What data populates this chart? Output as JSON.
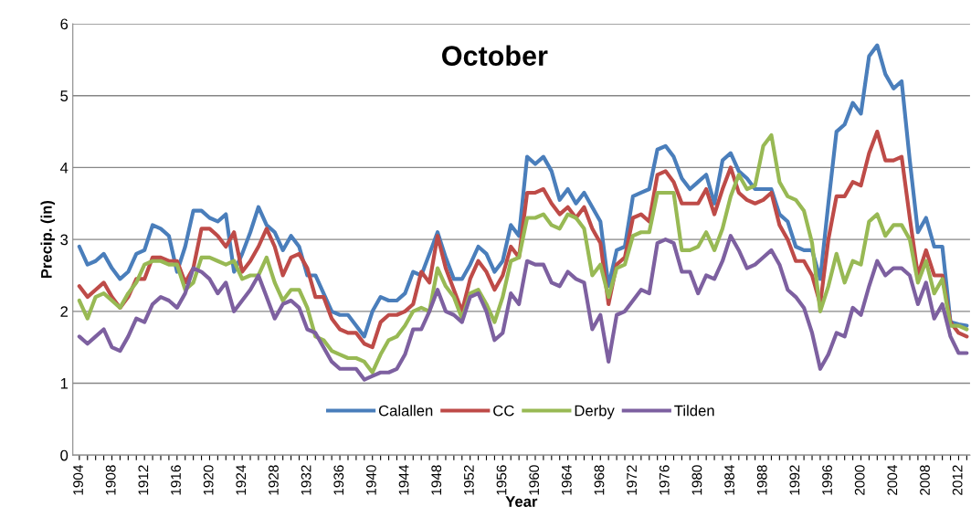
{
  "chart_data": {
    "type": "line",
    "title": "October",
    "xlabel": "Year",
    "ylabel": "Precip. (in)",
    "categories": [
      "1904",
      null,
      null,
      null,
      "1908",
      null,
      null,
      null,
      "1912",
      null,
      null,
      null,
      "1916",
      null,
      null,
      null,
      "1920",
      null,
      null,
      null,
      "1924",
      null,
      null,
      null,
      "1928",
      null,
      null,
      null,
      "1932",
      null,
      null,
      null,
      "1936",
      null,
      null,
      null,
      "1940",
      null,
      null,
      null,
      "1944",
      null,
      null,
      null,
      "1948",
      null,
      null,
      null,
      "1952",
      null,
      null,
      null,
      "1956",
      null,
      null,
      null,
      "1960",
      null,
      null,
      null,
      "1964",
      null,
      null,
      null,
      "1968",
      null,
      null,
      null,
      "1972",
      null,
      null,
      null,
      "1976",
      null,
      null,
      null,
      "1980",
      null,
      null,
      null,
      "1984",
      null,
      null,
      null,
      "1988",
      null,
      null,
      null,
      "1992",
      null,
      null,
      null,
      "1996",
      null,
      null,
      null,
      "2000",
      null,
      null,
      null,
      "2004",
      null,
      null,
      null,
      "2008",
      null,
      null,
      null,
      "2012",
      null
    ],
    "series": [
      {
        "name": "Calallen",
        "color": "#4a7ebb",
        "values": [
          2.9,
          2.65,
          2.7,
          2.8,
          2.6,
          2.45,
          2.55,
          2.8,
          2.85,
          3.2,
          3.15,
          3.05,
          2.55,
          2.9,
          3.4,
          3.4,
          3.3,
          3.25,
          3.35,
          2.55,
          2.8,
          3.1,
          3.45,
          3.2,
          3.1,
          2.85,
          3.05,
          2.9,
          2.5,
          2.5,
          2.25,
          2.0,
          1.95,
          1.95,
          1.8,
          1.65,
          2.0,
          2.2,
          2.15,
          2.15,
          2.25,
          2.55,
          2.5,
          2.8,
          3.1,
          2.75,
          2.45,
          2.45,
          2.65,
          2.9,
          2.8,
          2.55,
          2.7,
          3.2,
          3.05,
          4.15,
          4.05,
          4.15,
          3.95,
          3.55,
          3.7,
          3.5,
          3.65,
          3.45,
          3.25,
          2.35,
          2.85,
          2.9,
          3.6,
          3.65,
          3.7,
          4.25,
          4.3,
          4.15,
          3.85,
          3.7,
          3.8,
          3.9,
          3.5,
          4.1,
          4.2,
          3.95,
          3.85,
          3.7,
          3.7,
          3.7,
          3.35,
          3.25,
          2.9,
          2.85,
          2.85,
          2.45,
          3.5,
          4.5,
          4.6,
          4.9,
          4.75,
          5.55,
          5.7,
          5.3,
          5.1,
          5.2,
          4.1,
          3.1,
          3.3,
          2.9,
          2.9,
          1.85,
          1.82,
          1.8
        ]
      },
      {
        "name": "CC",
        "color": "#be4b48",
        "values": [
          2.35,
          2.2,
          2.3,
          2.4,
          2.2,
          2.05,
          2.2,
          2.45,
          2.45,
          2.75,
          2.75,
          2.7,
          2.7,
          2.4,
          2.6,
          3.15,
          3.15,
          3.05,
          2.9,
          3.1,
          2.55,
          2.7,
          2.9,
          3.15,
          2.9,
          2.5,
          2.75,
          2.8,
          2.6,
          2.2,
          2.2,
          1.9,
          1.75,
          1.7,
          1.7,
          1.55,
          1.5,
          1.85,
          1.95,
          1.95,
          2.0,
          2.1,
          2.55,
          2.4,
          3.05,
          2.6,
          2.3,
          2.0,
          2.45,
          2.7,
          2.55,
          2.3,
          2.5,
          2.9,
          2.75,
          3.65,
          3.65,
          3.7,
          3.5,
          3.35,
          3.45,
          3.3,
          3.45,
          3.15,
          2.95,
          2.1,
          2.65,
          2.75,
          3.3,
          3.35,
          3.25,
          3.9,
          3.95,
          3.8,
          3.5,
          3.5,
          3.5,
          3.7,
          3.35,
          3.7,
          4.0,
          3.65,
          3.55,
          3.5,
          3.55,
          3.65,
          3.2,
          3.0,
          2.7,
          2.7,
          2.5,
          2.1,
          3.0,
          3.6,
          3.6,
          3.8,
          3.75,
          4.2,
          4.5,
          4.1,
          4.1,
          4.15,
          3.3,
          2.5,
          2.85,
          2.5,
          2.5,
          1.85,
          1.7,
          1.65
        ]
      },
      {
        "name": "Derby",
        "color": "#98b954",
        "values": [
          2.15,
          1.9,
          2.2,
          2.25,
          2.15,
          2.05,
          2.25,
          2.4,
          2.65,
          2.7,
          2.7,
          2.65,
          2.65,
          2.3,
          2.4,
          2.75,
          2.75,
          2.7,
          2.65,
          2.7,
          2.45,
          2.5,
          2.5,
          2.75,
          2.4,
          2.15,
          2.3,
          2.3,
          2.05,
          1.65,
          1.6,
          1.45,
          1.4,
          1.35,
          1.35,
          1.3,
          1.15,
          1.4,
          1.6,
          1.65,
          1.8,
          2.0,
          2.05,
          2.0,
          2.6,
          2.35,
          2.2,
          1.9,
          2.25,
          2.3,
          2.1,
          1.85,
          2.2,
          2.7,
          2.75,
          3.3,
          3.3,
          3.35,
          3.2,
          3.15,
          3.35,
          3.3,
          3.15,
          2.5,
          2.65,
          2.2,
          2.6,
          2.65,
          3.05,
          3.1,
          3.1,
          3.65,
          3.65,
          3.65,
          2.85,
          2.85,
          2.9,
          3.1,
          2.85,
          3.15,
          3.6,
          3.9,
          3.7,
          3.75,
          4.3,
          4.45,
          3.8,
          3.6,
          3.55,
          3.4,
          2.95,
          2.0,
          2.35,
          2.8,
          2.4,
          2.7,
          2.65,
          3.25,
          3.35,
          3.05,
          3.2,
          3.2,
          3.0,
          2.4,
          2.7,
          2.25,
          2.45,
          1.8,
          1.8,
          1.75
        ]
      },
      {
        "name": "Tilden",
        "color": "#7d60a0",
        "values": [
          1.65,
          1.55,
          1.65,
          1.75,
          1.5,
          1.45,
          1.65,
          1.9,
          1.85,
          2.1,
          2.2,
          2.15,
          2.05,
          2.25,
          2.6,
          2.55,
          2.45,
          2.25,
          2.4,
          2.0,
          2.15,
          2.3,
          2.5,
          2.2,
          1.9,
          2.1,
          2.15,
          2.05,
          1.75,
          1.7,
          1.5,
          1.3,
          1.2,
          1.2,
          1.2,
          1.05,
          1.1,
          1.15,
          1.15,
          1.2,
          1.4,
          1.75,
          1.75,
          2.0,
          2.3,
          2.0,
          1.95,
          1.85,
          2.2,
          2.25,
          2.0,
          1.6,
          1.7,
          2.25,
          2.1,
          2.7,
          2.65,
          2.65,
          2.4,
          2.35,
          2.55,
          2.45,
          2.4,
          1.75,
          1.95,
          1.3,
          1.95,
          2.0,
          2.15,
          2.3,
          2.25,
          2.95,
          3.0,
          2.95,
          2.55,
          2.55,
          2.25,
          2.5,
          2.45,
          2.7,
          3.05,
          2.85,
          2.6,
          2.65,
          2.75,
          2.85,
          2.65,
          2.3,
          2.2,
          2.05,
          1.7,
          1.2,
          1.4,
          1.7,
          1.65,
          2.05,
          1.95,
          2.35,
          2.7,
          2.5,
          2.6,
          2.6,
          2.5,
          2.1,
          2.4,
          1.9,
          2.1,
          1.65,
          1.42,
          1.42
        ]
      }
    ],
    "ylim": [
      0,
      6
    ],
    "yticks": [
      0,
      1,
      2,
      3,
      4,
      5,
      6
    ],
    "grid": "y",
    "legend": "bottom",
    "marker": "none",
    "line_style": "solid"
  }
}
